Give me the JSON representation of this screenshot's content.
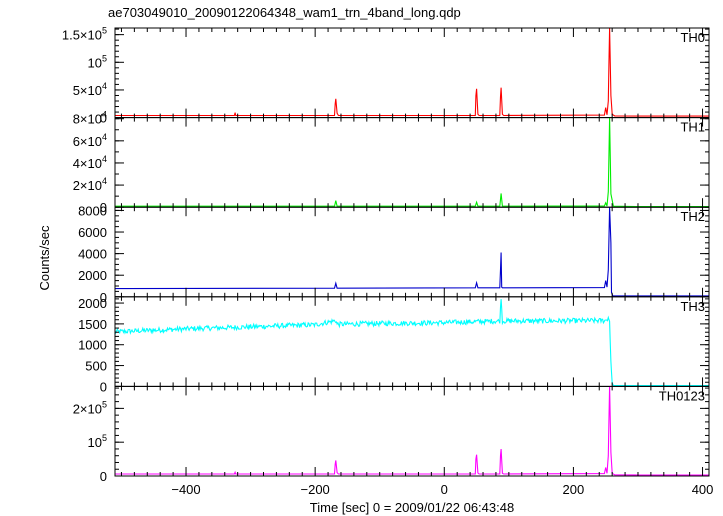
{
  "chart_data": {
    "type": "line",
    "title": "ae703049010_20090122064348_wam1_trn_4band_long.qdp",
    "xlabel": "Time [sec] 0 = 2009/01/22 06:43:48",
    "ylabel": "Counts/sec",
    "xlim": [
      -510,
      410
    ],
    "xticks": [
      -400,
      -200,
      0,
      200,
      400
    ],
    "xtick_labels": [
      "−400",
      "−200",
      "0",
      "200",
      "400"
    ],
    "x_minor_step": 20,
    "panels": [
      {
        "name": "TH0",
        "color": "#ff0000",
        "ylim": [
          0,
          162000
        ],
        "yticks": [
          0,
          50000,
          100000,
          150000
        ],
        "ytick_labels": [
          {
            "base": "0",
            "exp": ""
          },
          {
            "base": "5×10",
            "exp": "4"
          },
          {
            "base": "10",
            "exp": "5"
          },
          {
            "base": "1.5×10",
            "exp": "5"
          }
        ],
        "y_minor_step": 10000,
        "points": [
          [
            -510,
            3800
          ],
          [
            -325,
            3800
          ],
          [
            -324,
            9000
          ],
          [
            -323,
            3800
          ],
          [
            -170,
            3800
          ],
          [
            -169,
            25000
          ],
          [
            -168,
            34000
          ],
          [
            -166,
            8000
          ],
          [
            -164,
            3800
          ],
          [
            48,
            3800
          ],
          [
            49,
            40000
          ],
          [
            50,
            52000
          ],
          [
            52,
            6000
          ],
          [
            54,
            3800
          ],
          [
            86,
            3800
          ],
          [
            87,
            38000
          ],
          [
            88,
            54000
          ],
          [
            90,
            6000
          ],
          [
            92,
            3800
          ],
          [
            248,
            4500
          ],
          [
            250,
            18000
          ],
          [
            252,
            5000
          ],
          [
            254,
            30000
          ],
          [
            255,
            95000
          ],
          [
            256,
            162000
          ],
          [
            258,
            40000
          ],
          [
            260,
            6000
          ],
          [
            264,
            3000
          ],
          [
            300,
            2800
          ],
          [
            410,
            2800
          ]
        ]
      },
      {
        "name": "TH1",
        "color": "#00ee00",
        "ylim": [
          0,
          81000
        ],
        "yticks": [
          0,
          20000,
          40000,
          60000,
          80000
        ],
        "ytick_labels": [
          {
            "base": "0",
            "exp": ""
          },
          {
            "base": "2×10",
            "exp": "4"
          },
          {
            "base": "4×10",
            "exp": "4"
          },
          {
            "base": "6×10",
            "exp": "4"
          },
          {
            "base": "8×10",
            "exp": "4"
          }
        ],
        "y_minor_step": 10000,
        "points": [
          [
            -510,
            900
          ],
          [
            -170,
            900
          ],
          [
            -168,
            6000
          ],
          [
            -166,
            900
          ],
          [
            48,
            900
          ],
          [
            50,
            4500
          ],
          [
            52,
            900
          ],
          [
            86,
            900
          ],
          [
            88,
            12500
          ],
          [
            90,
            900
          ],
          [
            248,
            1200
          ],
          [
            250,
            4000
          ],
          [
            252,
            1000
          ],
          [
            254,
            14000
          ],
          [
            256,
            81000
          ],
          [
            258,
            12000
          ],
          [
            262,
            900
          ],
          [
            300,
            500
          ],
          [
            410,
            500
          ]
        ]
      },
      {
        "name": "TH2",
        "color": "#0000cc",
        "ylim": [
          0,
          8300
        ],
        "yticks": [
          0,
          2000,
          4000,
          6000,
          8000
        ],
        "ytick_labels": [
          {
            "base": "0",
            "exp": ""
          },
          {
            "base": "2000",
            "exp": ""
          },
          {
            "base": "4000",
            "exp": ""
          },
          {
            "base": "6000",
            "exp": ""
          },
          {
            "base": "8000",
            "exp": ""
          }
        ],
        "y_minor_step": 500,
        "points": [
          [
            -510,
            760
          ],
          [
            -170,
            800
          ],
          [
            -168,
            1250
          ],
          [
            -166,
            800
          ],
          [
            48,
            830
          ],
          [
            50,
            1300
          ],
          [
            52,
            830
          ],
          [
            86,
            830
          ],
          [
            87,
            2500
          ],
          [
            88,
            4100
          ],
          [
            89,
            900
          ],
          [
            90,
            830
          ],
          [
            248,
            850
          ],
          [
            250,
            1500
          ],
          [
            252,
            900
          ],
          [
            254,
            2500
          ],
          [
            256,
            8300
          ],
          [
            258,
            5000
          ],
          [
            259,
            400
          ],
          [
            261,
            80
          ],
          [
            410,
            80
          ]
        ]
      },
      {
        "name": "TH3",
        "color": "#00ffff",
        "ylim": [
          0,
          2150
        ],
        "yticks": [
          0,
          500,
          1000,
          1500,
          2000
        ],
        "ytick_labels": [
          {
            "base": "0",
            "exp": ""
          },
          {
            "base": "500",
            "exp": ""
          },
          {
            "base": "1000",
            "exp": ""
          },
          {
            "base": "1500",
            "exp": ""
          },
          {
            "base": "2000",
            "exp": ""
          }
        ],
        "y_minor_step": 100,
        "points": [
          [
            -510,
            1310
          ],
          [
            -400,
            1380
          ],
          [
            -300,
            1430
          ],
          [
            -200,
            1480
          ],
          [
            -168,
            1580
          ],
          [
            -166,
            1490
          ],
          [
            -100,
            1510
          ],
          [
            0,
            1530
          ],
          [
            86,
            1570
          ],
          [
            88,
            2150
          ],
          [
            90,
            1570
          ],
          [
            150,
            1570
          ],
          [
            250,
            1580
          ],
          [
            254,
            1650
          ],
          [
            256,
            1560
          ],
          [
            258,
            600
          ],
          [
            260,
            80
          ],
          [
            262,
            20
          ],
          [
            410,
            20
          ]
        ]
      },
      {
        "name": "TH0123",
        "color": "#ff00ff",
        "ylim": [
          0,
          265000
        ],
        "yticks": [
          0,
          100000,
          200000
        ],
        "ytick_labels": [
          {
            "base": "0",
            "exp": ""
          },
          {
            "base": "10",
            "exp": "5"
          },
          {
            "base": "2×10",
            "exp": "5"
          }
        ],
        "y_minor_step": 20000,
        "points": [
          [
            -510,
            6000
          ],
          [
            -325,
            6000
          ],
          [
            -324,
            11000
          ],
          [
            -323,
            6000
          ],
          [
            -170,
            6000
          ],
          [
            -169,
            35000
          ],
          [
            -168,
            46000
          ],
          [
            -166,
            10000
          ],
          [
            -164,
            6000
          ],
          [
            48,
            6000
          ],
          [
            49,
            50000
          ],
          [
            50,
            63000
          ],
          [
            52,
            9000
          ],
          [
            54,
            6000
          ],
          [
            86,
            6000
          ],
          [
            87,
            60000
          ],
          [
            88,
            80000
          ],
          [
            90,
            8000
          ],
          [
            92,
            6000
          ],
          [
            248,
            7000
          ],
          [
            250,
            25000
          ],
          [
            252,
            8000
          ],
          [
            254,
            60000
          ],
          [
            255,
            160000
          ],
          [
            256,
            265000
          ],
          [
            258,
            70000
          ],
          [
            260,
            8000
          ],
          [
            264,
            3500
          ],
          [
            300,
            3000
          ],
          [
            410,
            3000
          ]
        ]
      }
    ]
  }
}
